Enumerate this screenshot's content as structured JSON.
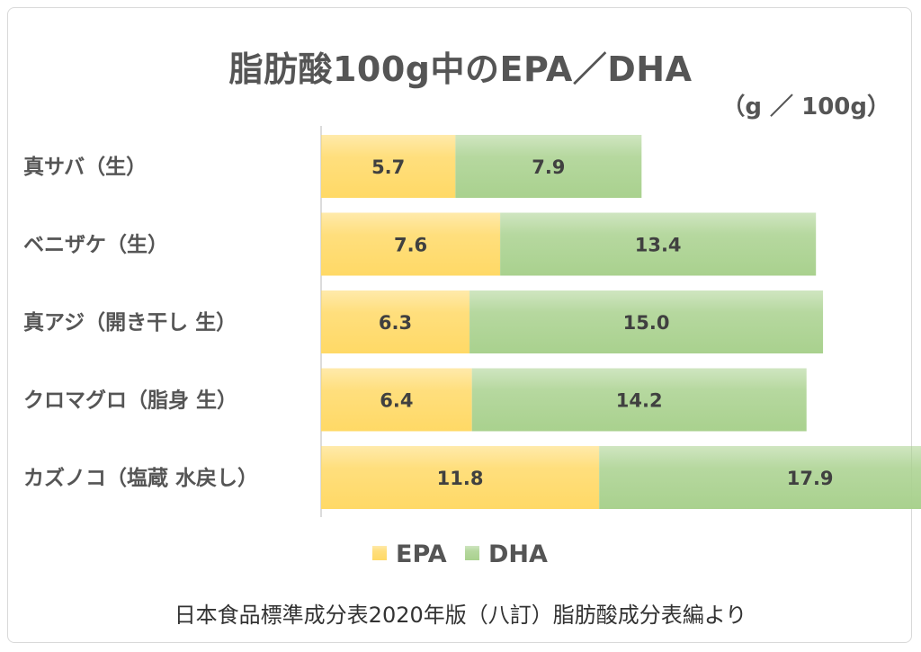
{
  "title": "脂肪酸100g中のEPA／DHA",
  "unit": "（g ／ 100g）",
  "source": "日本食品標準成分表2020年版（八訂）脂肪酸成分表編より",
  "colors": {
    "epa": "#ffd966",
    "dha": "#a9d18e"
  },
  "chart_data": {
    "type": "bar",
    "orientation": "horizontal",
    "stacked": true,
    "title": "脂肪酸100g中のEPA／DHA",
    "unit": "（g ／ 100g）",
    "categories": [
      "真サバ（生）",
      "ベニザケ（生）",
      "真アジ（開き干し 生）",
      "クロマグロ（脂身 生）",
      "カズノコ（塩蔵 水戻し）"
    ],
    "series": [
      {
        "name": "EPA",
        "values": [
          5.7,
          7.6,
          6.3,
          6.4,
          11.8
        ],
        "labels": [
          "5.7",
          "7.6",
          "6.3",
          "6.4",
          "11.8"
        ]
      },
      {
        "name": "DHA",
        "values": [
          7.9,
          13.4,
          15.0,
          14.2,
          17.9
        ],
        "labels": [
          "7.9",
          "13.4",
          "15.0",
          "14.2",
          "17.9"
        ]
      }
    ],
    "xlim": [
      0,
      30
    ],
    "grid": false,
    "legend": "bottom"
  }
}
